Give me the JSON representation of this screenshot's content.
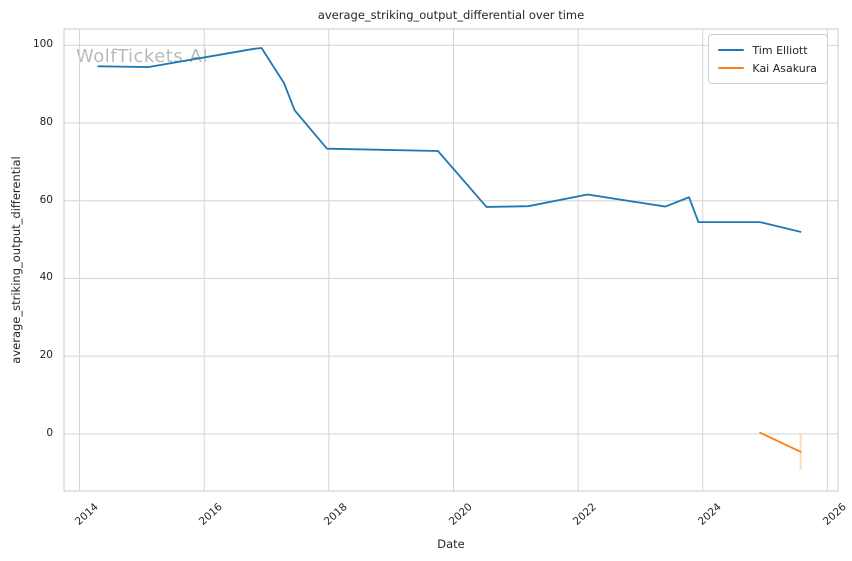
{
  "figure": {
    "watermark": "WolfTickets.AI",
    "background": "#ffffff"
  },
  "chart_data": {
    "type": "line",
    "title": "average_striking_output_differential over time",
    "xlabel": "Date",
    "ylabel": "average_striking_output_differential",
    "x_ticks": [
      2014,
      2016,
      2018,
      2020,
      2022,
      2024,
      2026
    ],
    "y_ticks": [
      0,
      20,
      40,
      60,
      80,
      100
    ],
    "xlim": [
      2013.75,
      2026.17
    ],
    "ylim": [
      -14.7,
      104.2
    ],
    "grid": true,
    "grid_color": "#d4d4d4",
    "spine_color": "#cccccc",
    "legend_position": "upper right",
    "series": [
      {
        "name": "Tim Elliott",
        "color": "#1f77b4",
        "x": [
          2014.3,
          2015.1,
          2016.8,
          2016.92,
          2017.28,
          2017.45,
          2017.97,
          2019.75,
          2020.53,
          2021.2,
          2022.15,
          2023.4,
          2023.78,
          2023.93,
          2024.92,
          2025.57
        ],
        "y": [
          94.6,
          94.4,
          99.1,
          99.3,
          90.3,
          83.3,
          73.4,
          72.8,
          58.4,
          58.6,
          61.6,
          58.5,
          60.9,
          54.5,
          54.5,
          52.0
        ]
      },
      {
        "name": "Kai Asakura",
        "color": "#ff7f0e",
        "x": [
          2024.92,
          2025.57
        ],
        "y": [
          0.3,
          -4.6
        ],
        "error_bars": [
          {
            "x": 2025.57,
            "y_low": -9.2,
            "y_high": 0.0,
            "color": "#ff7f0e",
            "opacity": 0.3
          }
        ]
      }
    ]
  }
}
